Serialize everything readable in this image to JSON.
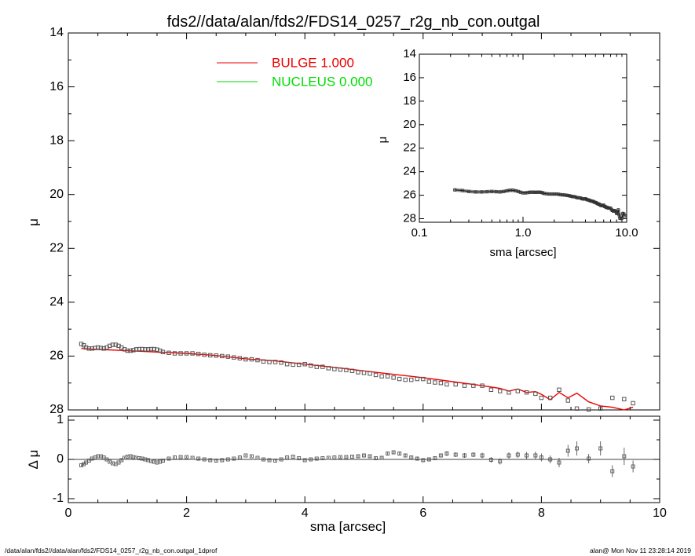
{
  "title": "fds2//data/alan/fds2/FDS14_0257_r2g_nb_con.outgal",
  "footer_left": "/data/alan/fds2//data/alan/fds2/FDS14_0257_r2g_nb_con.outgal_1dprof",
  "footer_right": "alan@  Mon Nov 11 23:28:14 2019",
  "legend": [
    {
      "label": "BULGE  1.000",
      "color": "#ee0000"
    },
    {
      "label": "NUCLEUS  0.000",
      "color": "#00dd00"
    }
  ],
  "colors": {
    "model": "#ee0000",
    "data": "#555555",
    "axes": "#000000"
  },
  "chart_data": [
    {
      "type": "scatter",
      "name": "main",
      "xlabel": "sma [arcsec]",
      "ylabel": "μ",
      "xlim": [
        0,
        10
      ],
      "ylim": [
        28,
        14
      ],
      "xticks": [
        "0",
        "2",
        "4",
        "6",
        "8",
        "10"
      ],
      "yticks": [
        "14",
        "16",
        "18",
        "20",
        "22",
        "24",
        "26",
        "28"
      ],
      "data_points": {
        "x": [
          0.22,
          0.26,
          0.3,
          0.35,
          0.4,
          0.45,
          0.5,
          0.55,
          0.6,
          0.65,
          0.7,
          0.75,
          0.8,
          0.85,
          0.9,
          0.95,
          1.0,
          1.05,
          1.1,
          1.15,
          1.2,
          1.25,
          1.3,
          1.35,
          1.4,
          1.45,
          1.5,
          1.55,
          1.6,
          1.7,
          1.8,
          1.9,
          2.0,
          2.1,
          2.2,
          2.3,
          2.4,
          2.5,
          2.6,
          2.7,
          2.8,
          2.9,
          3.0,
          3.1,
          3.2,
          3.3,
          3.4,
          3.5,
          3.6,
          3.7,
          3.8,
          3.9,
          4.0,
          4.1,
          4.2,
          4.3,
          4.4,
          4.5,
          4.6,
          4.7,
          4.8,
          4.9,
          5.0,
          5.1,
          5.2,
          5.3,
          5.4,
          5.5,
          5.6,
          5.7,
          5.8,
          5.9,
          6.0,
          6.1,
          6.2,
          6.3,
          6.4,
          6.55,
          6.7,
          6.85,
          7.0,
          7.15,
          7.3,
          7.45,
          7.6,
          7.75,
          7.9,
          8.0,
          8.15,
          8.3,
          8.45,
          8.6,
          8.8,
          9.0,
          9.2,
          9.4,
          9.55
        ],
        "y": [
          25.55,
          25.6,
          25.68,
          25.72,
          25.72,
          25.7,
          25.68,
          25.7,
          25.72,
          25.68,
          25.62,
          25.58,
          25.58,
          25.62,
          25.68,
          25.75,
          25.8,
          25.8,
          25.78,
          25.75,
          25.74,
          25.74,
          25.75,
          25.75,
          25.74,
          25.74,
          25.76,
          25.8,
          25.85,
          25.88,
          25.9,
          25.9,
          25.9,
          25.9,
          25.92,
          25.95,
          25.97,
          25.98,
          26.0,
          26.02,
          26.05,
          26.08,
          26.12,
          26.12,
          26.15,
          26.2,
          26.22,
          26.22,
          26.24,
          26.3,
          26.32,
          26.32,
          26.3,
          26.35,
          26.4,
          26.4,
          26.45,
          26.48,
          26.5,
          26.52,
          26.55,
          26.6,
          26.62,
          26.65,
          26.7,
          26.75,
          26.75,
          26.8,
          26.85,
          26.88,
          26.88,
          26.85,
          26.85,
          26.95,
          26.98,
          27.0,
          27.05,
          27.05,
          27.1,
          27.1,
          27.1,
          27.25,
          27.3,
          27.35,
          27.3,
          27.35,
          27.4,
          27.55,
          27.55,
          27.25,
          27.65,
          27.95,
          27.98,
          27.95,
          27.55,
          27.6,
          27.75
        ]
      },
      "model": {
        "name": "BULGE  1.000",
        "x": [
          0.22,
          0.5,
          1.0,
          1.5,
          2.0,
          2.5,
          3.0,
          3.5,
          4.0,
          4.5,
          5.0,
          5.5,
          6.0,
          6.5,
          7.0,
          7.3,
          7.45,
          7.6,
          7.75,
          7.9,
          8.0,
          8.15,
          8.3,
          8.45,
          8.6,
          8.8,
          9.0,
          9.2,
          9.4,
          9.55
        ],
        "y": [
          25.72,
          25.75,
          25.8,
          25.85,
          25.9,
          25.98,
          26.1,
          26.18,
          26.3,
          26.42,
          26.55,
          26.68,
          26.8,
          26.95,
          27.1,
          27.2,
          27.3,
          27.22,
          27.35,
          27.32,
          27.42,
          27.62,
          27.35,
          27.55,
          27.38,
          27.7,
          27.85,
          27.9,
          28.05,
          27.9
        ]
      }
    },
    {
      "type": "scatter",
      "name": "residuals",
      "xlabel": "sma [arcsec]",
      "ylabel": "Δ μ",
      "xlim": [
        0,
        10
      ],
      "ylim": [
        -1.1,
        1.1
      ],
      "xticks": [
        "0",
        "2",
        "4",
        "6",
        "8",
        "10"
      ],
      "yticks": [
        "1",
        "0",
        "-1"
      ],
      "data_points": {
        "x": [
          0.22,
          0.26,
          0.3,
          0.35,
          0.4,
          0.45,
          0.5,
          0.55,
          0.6,
          0.65,
          0.7,
          0.75,
          0.8,
          0.85,
          0.9,
          0.95,
          1.0,
          1.05,
          1.1,
          1.15,
          1.2,
          1.25,
          1.3,
          1.35,
          1.4,
          1.45,
          1.5,
          1.55,
          1.6,
          1.7,
          1.8,
          1.9,
          2.0,
          2.1,
          2.2,
          2.3,
          2.4,
          2.5,
          2.6,
          2.7,
          2.8,
          2.9,
          3.0,
          3.1,
          3.2,
          3.3,
          3.4,
          3.5,
          3.6,
          3.7,
          3.8,
          3.9,
          4.0,
          4.1,
          4.2,
          4.3,
          4.4,
          4.5,
          4.6,
          4.7,
          4.8,
          4.9,
          5.0,
          5.1,
          5.2,
          5.3,
          5.4,
          5.5,
          5.6,
          5.7,
          5.8,
          5.9,
          6.0,
          6.1,
          6.2,
          6.3,
          6.4,
          6.55,
          6.7,
          6.85,
          7.0,
          7.15,
          7.3,
          7.45,
          7.6,
          7.75,
          7.9,
          8.0,
          8.15,
          8.3,
          8.45,
          8.6,
          8.8,
          9.0,
          9.2,
          9.4,
          9.55
        ],
        "y": [
          -0.15,
          -0.12,
          -0.08,
          -0.03,
          0.02,
          0.05,
          0.08,
          0.08,
          0.05,
          0.0,
          -0.06,
          -0.1,
          -0.12,
          -0.08,
          -0.02,
          0.04,
          0.07,
          0.08,
          0.06,
          0.04,
          0.03,
          0.02,
          0.0,
          -0.02,
          -0.04,
          -0.06,
          -0.08,
          -0.06,
          -0.03,
          0.02,
          0.05,
          0.06,
          0.06,
          0.04,
          0.02,
          0.0,
          -0.02,
          -0.03,
          -0.02,
          0.0,
          0.02,
          0.05,
          0.1,
          0.08,
          0.04,
          0.0,
          -0.02,
          -0.03,
          0.0,
          0.05,
          0.07,
          0.03,
          -0.02,
          0.0,
          0.02,
          0.03,
          0.04,
          0.05,
          0.06,
          0.06,
          0.07,
          0.08,
          0.1,
          0.08,
          0.03,
          0.04,
          0.15,
          0.18,
          0.15,
          0.1,
          0.05,
          0.02,
          -0.02,
          0.0,
          0.03,
          0.1,
          0.15,
          0.12,
          0.1,
          0.12,
          0.1,
          -0.01,
          -0.05,
          0.1,
          0.12,
          0.1,
          0.1,
          0.05,
          0.0,
          -0.08,
          0.22,
          0.28,
          0.02,
          0.28,
          -0.3,
          0.08,
          -0.18
        ],
        "err": [
          0.02,
          0.02,
          0.02,
          0.02,
          0.02,
          0.02,
          0.02,
          0.02,
          0.02,
          0.02,
          0.02,
          0.02,
          0.02,
          0.02,
          0.02,
          0.02,
          0.02,
          0.02,
          0.02,
          0.02,
          0.02,
          0.02,
          0.02,
          0.02,
          0.02,
          0.02,
          0.02,
          0.02,
          0.02,
          0.02,
          0.02,
          0.02,
          0.02,
          0.02,
          0.02,
          0.02,
          0.02,
          0.02,
          0.02,
          0.02,
          0.02,
          0.02,
          0.02,
          0.02,
          0.02,
          0.02,
          0.02,
          0.02,
          0.02,
          0.02,
          0.02,
          0.02,
          0.02,
          0.02,
          0.02,
          0.02,
          0.02,
          0.02,
          0.02,
          0.02,
          0.02,
          0.03,
          0.03,
          0.03,
          0.03,
          0.04,
          0.04,
          0.04,
          0.04,
          0.04,
          0.04,
          0.05,
          0.05,
          0.05,
          0.05,
          0.05,
          0.06,
          0.06,
          0.06,
          0.06,
          0.07,
          0.07,
          0.08,
          0.08,
          0.08,
          0.09,
          0.1,
          0.1,
          0.1,
          0.12,
          0.15,
          0.18,
          0.12,
          0.18,
          0.15,
          0.22,
          0.15
        ]
      }
    },
    {
      "type": "scatter",
      "name": "inset",
      "xlabel": "sma [arcsec]",
      "ylabel": "μ",
      "xscale": "log",
      "xlim": [
        0.1,
        10
      ],
      "ylim": [
        28.3,
        14
      ],
      "xticks": [
        "0.1",
        "1.0",
        "10.0"
      ],
      "yticks": [
        "14",
        "16",
        "18",
        "20",
        "22",
        "24",
        "26",
        "28"
      ],
      "data_points": {
        "x": [
          0.22,
          0.26,
          0.3,
          0.35,
          0.4,
          0.45,
          0.5,
          0.55,
          0.6,
          0.65,
          0.7,
          0.75,
          0.8,
          0.85,
          0.9,
          0.95,
          1.0,
          1.05,
          1.1,
          1.15,
          1.2,
          1.25,
          1.3,
          1.35,
          1.4,
          1.45,
          1.5,
          1.55,
          1.6,
          1.7,
          1.8,
          1.9,
          2.0,
          2.1,
          2.2,
          2.3,
          2.4,
          2.5,
          2.6,
          2.7,
          2.8,
          2.9,
          3.0,
          3.1,
          3.2,
          3.3,
          3.4,
          3.5,
          3.6,
          3.7,
          3.8,
          3.9,
          4.0,
          4.1,
          4.2,
          4.3,
          4.4,
          4.5,
          4.6,
          4.7,
          4.8,
          4.9,
          5.0,
          5.1,
          5.2,
          5.3,
          5.4,
          5.5,
          5.6,
          5.7,
          5.8,
          5.9,
          6.0,
          6.1,
          6.2,
          6.3,
          6.4,
          6.55,
          6.7,
          6.85,
          7.0,
          7.15,
          7.3,
          7.45,
          7.6,
          7.75,
          7.9,
          8.0,
          8.15,
          8.3,
          8.45,
          8.6,
          8.8,
          9.0,
          9.2,
          9.4,
          9.55
        ],
        "y": [
          25.55,
          25.6,
          25.68,
          25.72,
          25.72,
          25.7,
          25.68,
          25.7,
          25.72,
          25.68,
          25.62,
          25.58,
          25.58,
          25.62,
          25.68,
          25.75,
          25.8,
          25.8,
          25.78,
          25.75,
          25.74,
          25.74,
          25.75,
          25.75,
          25.74,
          25.74,
          25.76,
          25.8,
          25.85,
          25.88,
          25.9,
          25.9,
          25.9,
          25.9,
          25.92,
          25.95,
          25.97,
          25.98,
          26.0,
          26.02,
          26.05,
          26.08,
          26.12,
          26.12,
          26.15,
          26.2,
          26.22,
          26.22,
          26.24,
          26.3,
          26.32,
          26.32,
          26.3,
          26.35,
          26.4,
          26.4,
          26.45,
          26.48,
          26.5,
          26.52,
          26.55,
          26.6,
          26.62,
          26.65,
          26.7,
          26.75,
          26.75,
          26.8,
          26.85,
          26.88,
          26.88,
          26.85,
          26.85,
          26.95,
          26.98,
          27.0,
          27.05,
          27.05,
          27.1,
          27.1,
          27.1,
          27.25,
          27.3,
          27.35,
          27.3,
          27.35,
          27.4,
          27.55,
          27.55,
          27.25,
          27.65,
          27.95,
          27.98,
          27.95,
          27.55,
          27.6,
          27.75
        ]
      }
    }
  ]
}
